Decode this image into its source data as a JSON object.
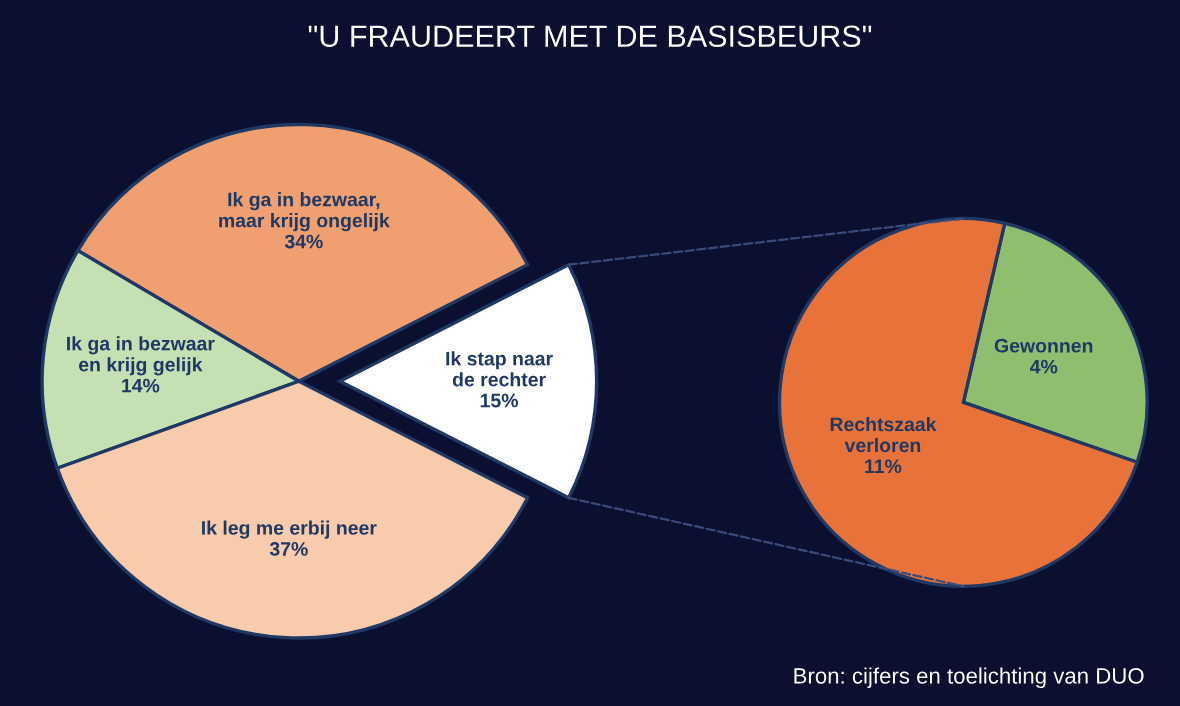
{
  "chart_data": [
    {
      "type": "pie",
      "title": "\"U FRAUDEERT MET DE BASISBEURS\"",
      "categories": [
        "Ik stap naar\nde rechter",
        "Ik ga in bezwaar,\nmaar krijg ongelijk",
        "Ik ga in bezwaar\nen krijg gelijk",
        "Ik leg me erbij neer"
      ],
      "values": [
        15,
        34,
        14,
        37
      ],
      "value_labels": [
        "15%",
        "34%",
        "14%",
        "37%"
      ],
      "colors": [
        "#ffffff",
        "#f0a070",
        "#c5e0b3",
        "#f8cbad"
      ]
    },
    {
      "type": "pie",
      "categories": [
        "Gewonnen",
        "Rechtszaak\nverloren"
      ],
      "values": [
        4,
        11
      ],
      "value_labels": [
        "4%",
        "11%"
      ],
      "colors": [
        "#8fbf6e",
        "#e8733a"
      ],
      "annotations": [
        "Bron: cijfers en toelichting van DUO"
      ]
    }
  ]
}
